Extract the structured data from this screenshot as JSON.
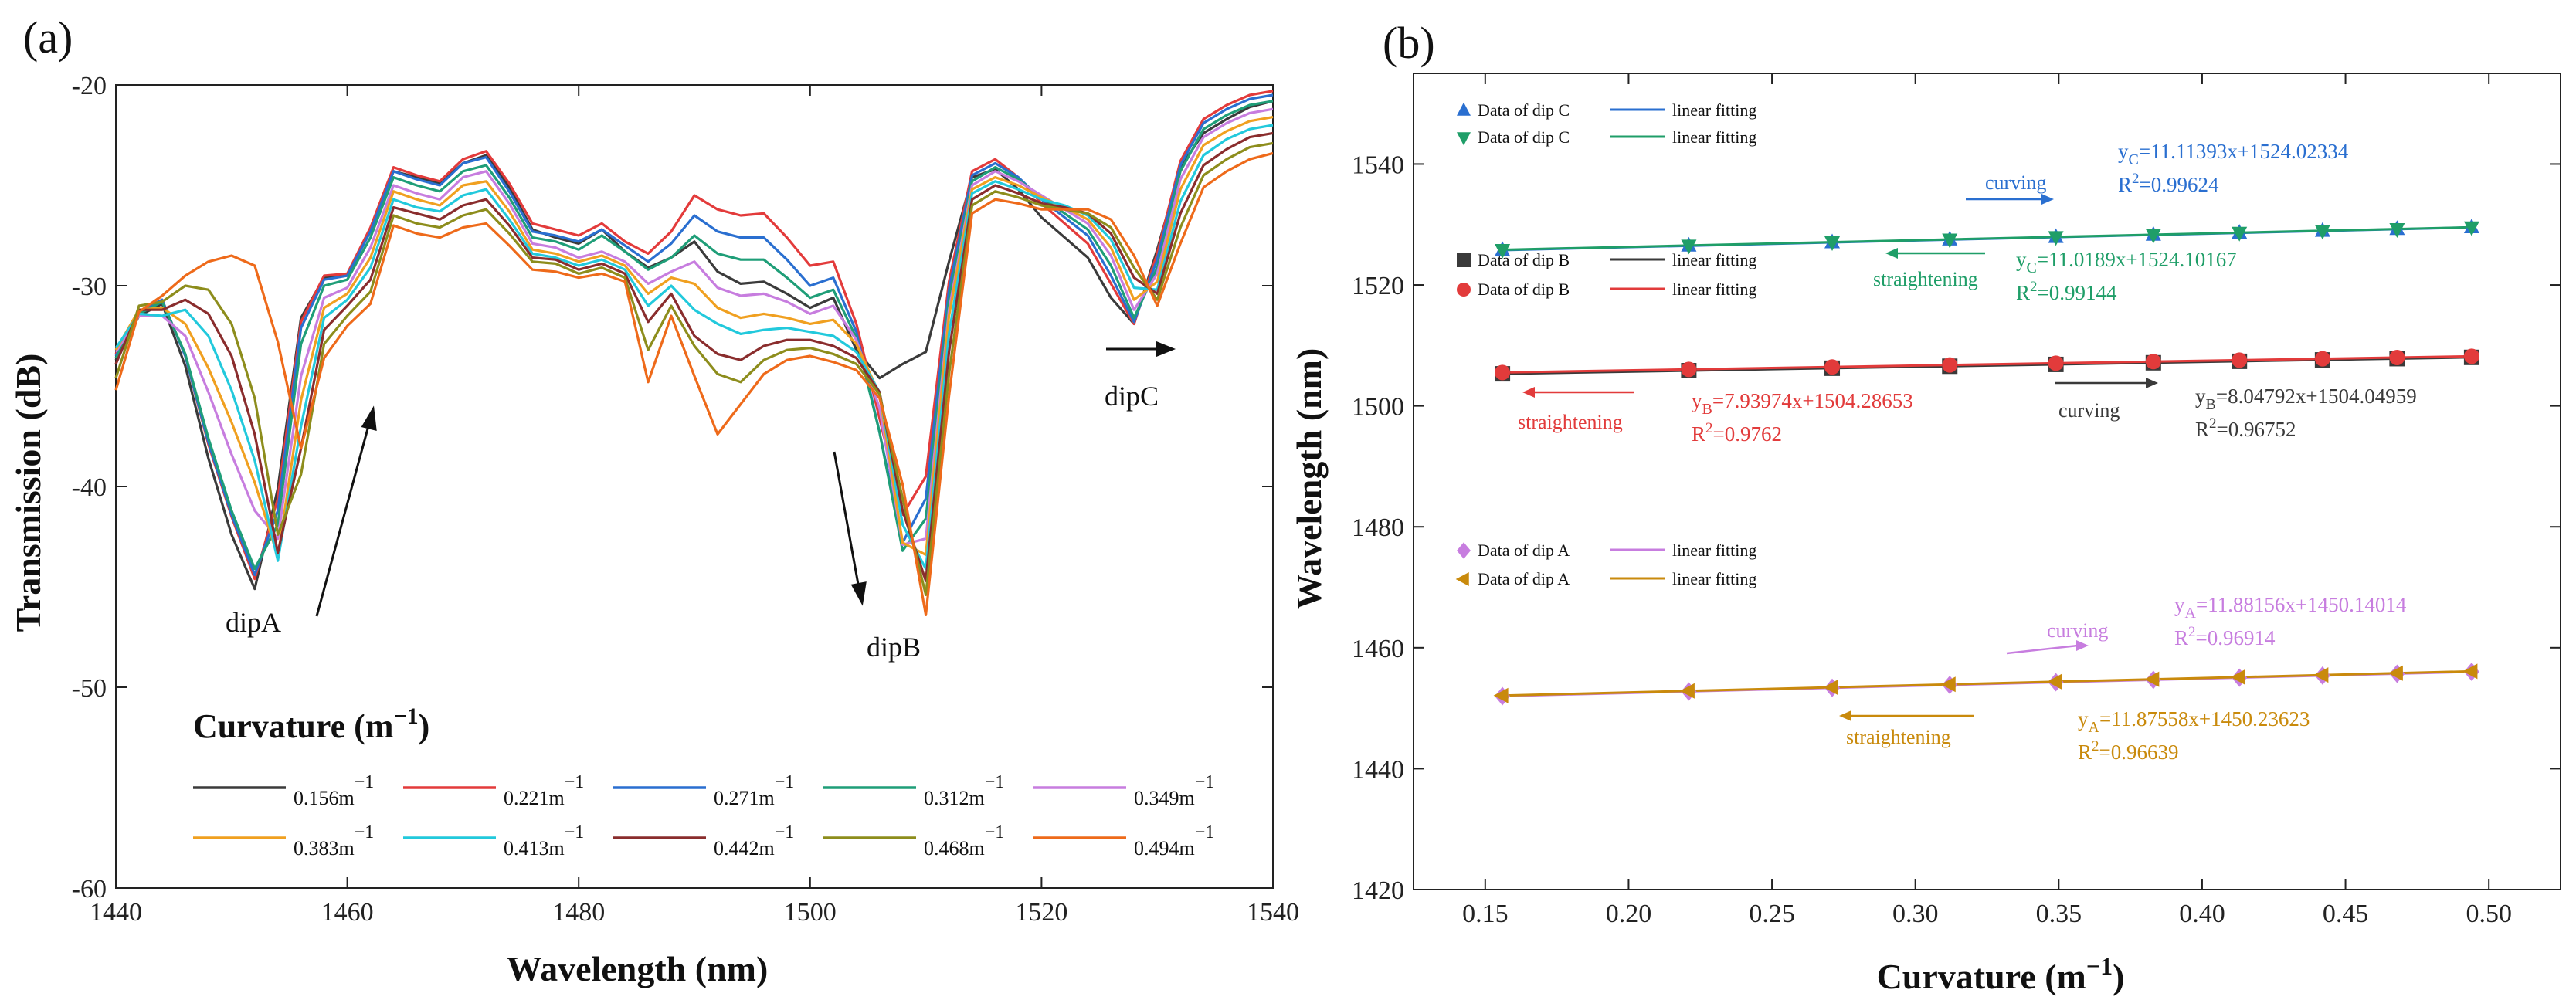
{
  "chart_data": [
    {
      "type": "line",
      "panel_label": "(a)",
      "xlabel": "Wavelength (nm)",
      "ylabel": "Transmission (dB)",
      "xlim": [
        1440,
        1540
      ],
      "ylim": [
        -60,
        -20
      ],
      "xticks": [
        1440,
        1460,
        1480,
        1500,
        1520,
        1540
      ],
      "yticks": [
        -20,
        -30,
        -40,
        -50,
        -60
      ],
      "legend_title": "Curvature (m",
      "legend_title_sup": "−1",
      "legend_title_end": ")",
      "annotations": [
        "dipA",
        "dipB",
        "dipC"
      ],
      "x": [
        1440,
        1442,
        1444,
        1446,
        1448,
        1450,
        1452,
        1454,
        1456,
        1458,
        1460,
        1462,
        1464,
        1466,
        1468,
        1470,
        1472,
        1474,
        1476,
        1478,
        1480,
        1482,
        1484,
        1486,
        1488,
        1490,
        1492,
        1494,
        1496,
        1498,
        1500,
        1502,
        1504,
        1506,
        1508,
        1510,
        1512,
        1514,
        1516,
        1518,
        1520,
        1522,
        1524,
        1526,
        1528,
        1530,
        1532,
        1534,
        1536,
        1538,
        1540
      ],
      "series": [
        {
          "name": "0.156m",
          "unit_sup": "−1",
          "color": "#3b3b3b",
          "values": [
            -33.7,
            -31.5,
            -30.9,
            -34,
            -38.6,
            -42.4,
            -45.1,
            -40.1,
            -31.6,
            -29.6,
            -29.5,
            -27.2,
            -24.3,
            -24.6,
            -24.9,
            -23.9,
            -23.5,
            -25.1,
            -27.2,
            -27.6,
            -27.9,
            -27.2,
            -28.3,
            -29.1,
            -28.6,
            -27.8,
            -29.3,
            -29.9,
            -29.8,
            -30.4,
            -31.1,
            -30.6,
            -33.2,
            -34.6,
            -33.9,
            -33.3,
            -28.8,
            -24.6,
            -24.2,
            -25.2,
            -26.6,
            -27.6,
            -28.6,
            -30.6,
            -31.9,
            -28.2,
            -24.1,
            -22.4,
            -21.7,
            -21.1,
            -20.8
          ]
        },
        {
          "name": "0.221m",
          "unit_sup": "−1",
          "color": "#e33b3b",
          "values": [
            -33.4,
            -31.3,
            -30.7,
            -33.5,
            -37.9,
            -41.5,
            -44.6,
            -40.6,
            -31.8,
            -29.5,
            -29.4,
            -27.1,
            -24.1,
            -24.5,
            -24.8,
            -23.7,
            -23.3,
            -24.9,
            -26.9,
            -27.2,
            -27.5,
            -26.9,
            -27.8,
            -28.4,
            -27.3,
            -25.5,
            -26.2,
            -26.5,
            -26.4,
            -27.6,
            -29,
            -28.8,
            -31.9,
            -36.6,
            -41.4,
            -39.5,
            -29.8,
            -24.3,
            -23.7,
            -24.6,
            -25.9,
            -26.9,
            -27.9,
            -29.9,
            -31.9,
            -28.4,
            -23.8,
            -21.7,
            -21,
            -20.5,
            -20.3
          ]
        },
        {
          "name": "0.271m",
          "unit_sup": "−1",
          "color": "#2a6fd0",
          "values": [
            -33.5,
            -31.3,
            -30.7,
            -33.5,
            -37.8,
            -41.4,
            -44.4,
            -41.2,
            -32.1,
            -29.7,
            -29.5,
            -27.3,
            -24.3,
            -24.7,
            -25,
            -23.9,
            -23.6,
            -25.3,
            -27.3,
            -27.5,
            -27.8,
            -27.2,
            -28,
            -28.8,
            -27.9,
            -26.5,
            -27.3,
            -27.6,
            -27.6,
            -28.7,
            -30,
            -29.6,
            -32.3,
            -37.3,
            -42.8,
            -40.6,
            -30.2,
            -24.5,
            -23.9,
            -24.6,
            -25.7,
            -26.6,
            -27.5,
            -29.5,
            -31.8,
            -28.7,
            -24,
            -21.9,
            -21.2,
            -20.7,
            -20.5
          ]
        },
        {
          "name": "0.312m",
          "unit_sup": "−1",
          "color": "#1f9e78",
          "values": [
            -33.6,
            -31.4,
            -30.8,
            -33.4,
            -37.6,
            -41.2,
            -44.1,
            -41.9,
            -32.9,
            -30,
            -29.7,
            -27.6,
            -24.6,
            -25,
            -25.3,
            -24.3,
            -24,
            -25.6,
            -27.6,
            -27.8,
            -28.2,
            -27.5,
            -28.3,
            -29.2,
            -28.6,
            -27.5,
            -28.4,
            -28.7,
            -28.7,
            -29.6,
            -30.6,
            -30.2,
            -32.6,
            -37.3,
            -43.2,
            -41.6,
            -30.7,
            -24.8,
            -24.1,
            -24.7,
            -25.6,
            -26.4,
            -27.2,
            -29,
            -31.6,
            -29.1,
            -24.3,
            -22.2,
            -21.5,
            -21,
            -20.8
          ]
        },
        {
          "name": "0.349m",
          "unit_sup": "−1",
          "color": "#c77ddf",
          "values": [
            -33.3,
            -31.5,
            -31.5,
            -32.5,
            -35.3,
            -38.4,
            -41.2,
            -42.6,
            -34.5,
            -30.6,
            -30.1,
            -28.1,
            -25,
            -25.4,
            -25.7,
            -24.6,
            -24.3,
            -25.9,
            -27.9,
            -28.1,
            -28.6,
            -28.3,
            -28.8,
            -29.9,
            -29.3,
            -28.8,
            -30.1,
            -30.5,
            -30.4,
            -30.8,
            -31.4,
            -31,
            -32.7,
            -36.1,
            -42.9,
            -42.6,
            -31.2,
            -25,
            -24.3,
            -24.8,
            -25.5,
            -26.2,
            -26.9,
            -28.5,
            -31.2,
            -29.4,
            -24.7,
            -22.6,
            -21.9,
            -21.4,
            -21.2
          ]
        },
        {
          "name": "0.383m",
          "unit_sup": "−1",
          "color": "#f0a020",
          "values": [
            -33.2,
            -31.2,
            -31.1,
            -31.9,
            -34.1,
            -36.8,
            -39.8,
            -43.5,
            -35.7,
            -31.1,
            -30.4,
            -28.6,
            -25.3,
            -25.7,
            -26,
            -25,
            -24.8,
            -26.3,
            -28.2,
            -28.4,
            -28.8,
            -28.5,
            -29,
            -30.4,
            -29.6,
            -29.9,
            -31.1,
            -31.6,
            -31.4,
            -31.6,
            -31.9,
            -31.7,
            -32.9,
            -35.4,
            -42.8,
            -43.4,
            -31.5,
            -25.2,
            -24.6,
            -25,
            -25.6,
            -26.1,
            -26.7,
            -28.1,
            -30.7,
            -29.8,
            -25.2,
            -23,
            -22.3,
            -21.8,
            -21.6
          ]
        },
        {
          "name": "0.413m",
          "unit_sup": "−1",
          "color": "#22c9dc",
          "values": [
            -33.1,
            -31.4,
            -31.5,
            -31.2,
            -32.5,
            -35.2,
            -38.7,
            -43.7,
            -37,
            -31.6,
            -30.7,
            -29.1,
            -25.7,
            -26.1,
            -26.3,
            -25.5,
            -25.2,
            -26.7,
            -28.4,
            -28.6,
            -29,
            -28.7,
            -29.2,
            -31,
            -30,
            -31.2,
            -31.9,
            -32.4,
            -32.2,
            -32.1,
            -32.3,
            -32.5,
            -33.3,
            -35.3,
            -41.9,
            -44.1,
            -32.4,
            -25.4,
            -24.8,
            -25.2,
            -25.7,
            -26,
            -26.5,
            -27.7,
            -30.1,
            -30.2,
            -25.8,
            -23.5,
            -22.7,
            -22.2,
            -22
          ]
        },
        {
          "name": "0.442m",
          "unit_sup": "−1",
          "color": "#8a2d2d",
          "values": [
            -33.9,
            -31.2,
            -31.2,
            -30.7,
            -31.4,
            -33.5,
            -37.4,
            -43.3,
            -38.1,
            -32.2,
            -31,
            -29.7,
            -26.1,
            -26.4,
            -26.7,
            -26,
            -25.7,
            -27,
            -28.6,
            -28.7,
            -29.2,
            -28.9,
            -29.4,
            -31.8,
            -30.4,
            -32.5,
            -33.4,
            -33.7,
            -33,
            -32.7,
            -32.7,
            -33,
            -33.6,
            -35.3,
            -41.2,
            -44.7,
            -33.3,
            -25.7,
            -25,
            -25.4,
            -25.9,
            -26.1,
            -26.4,
            -27.4,
            -29.6,
            -30.4,
            -26.4,
            -24,
            -23.2,
            -22.6,
            -22.4
          ]
        },
        {
          "name": "0.468m",
          "unit_sup": "−1",
          "color": "#8d8d1c",
          "values": [
            -34.6,
            -31,
            -30.8,
            -30,
            -30.2,
            -31.9,
            -35.6,
            -42.4,
            -39.4,
            -32.9,
            -31.5,
            -30.3,
            -26.5,
            -26.9,
            -27.1,
            -26.5,
            -26.2,
            -27.4,
            -28.8,
            -28.9,
            -29.4,
            -29.1,
            -29.6,
            -33.2,
            -31,
            -33,
            -34.4,
            -34.8,
            -33.7,
            -33.2,
            -33.1,
            -33.4,
            -33.9,
            -35.4,
            -40.6,
            -45.4,
            -34.4,
            -26,
            -25.3,
            -25.6,
            -26,
            -26.2,
            -26.4,
            -27.1,
            -29.1,
            -30.7,
            -27.1,
            -24.5,
            -23.7,
            -23.1,
            -22.9
          ]
        },
        {
          "name": "0.494m",
          "unit_sup": "−1",
          "color": "#ee6a1a",
          "values": [
            -35.2,
            -31.3,
            -30.5,
            -29.5,
            -28.8,
            -28.5,
            -29,
            -32.8,
            -38.1,
            -33.6,
            -32,
            -30.9,
            -27,
            -27.4,
            -27.6,
            -27.1,
            -26.9,
            -28,
            -29.2,
            -29.3,
            -29.6,
            -29.4,
            -29.8,
            -34.8,
            -31.5,
            -34.5,
            -37.4,
            -35.9,
            -34.4,
            -33.7,
            -33.5,
            -33.8,
            -34.2,
            -35.6,
            -39.9,
            -46.4,
            -35.5,
            -26.4,
            -25.7,
            -25.9,
            -26.2,
            -26.2,
            -26.2,
            -26.7,
            -28.5,
            -31,
            -27.9,
            -25.1,
            -24.3,
            -23.7,
            -23.4
          ]
        }
      ]
    },
    {
      "type": "scatter",
      "panel_label": "(b)",
      "xlabel": "Curvature (m",
      "xlabel_sup": "−1",
      "xlabel_end": ")",
      "ylabel": "Wavelength (nm)",
      "xlim": [
        0.125,
        0.525
      ],
      "ylim": [
        1420,
        1555
      ],
      "xticks": [
        "0.15",
        "0.20",
        "0.25",
        "0.30",
        "0.35",
        "0.40",
        "0.45",
        "0.50"
      ],
      "yticks": [
        1420,
        1440,
        1460,
        1480,
        1500,
        1520,
        1540
      ],
      "x": [
        0.156,
        0.221,
        0.271,
        0.312,
        0.349,
        0.383,
        0.413,
        0.442,
        0.468,
        0.494
      ],
      "series": [
        {
          "name": "Data of dip C",
          "fit_label": "linear fitting",
          "marker": "triangle-up",
          "color": "#2a6fd0",
          "slope": 11.11393,
          "intercept": 1524.02334,
          "equation": "y",
          "eq_sub": "C",
          "eq_rest": "=11.11393x+1524.02334",
          "r2_value": "=0.99624",
          "trend": "curving"
        },
        {
          "name": "Data of dip C",
          "fit_label": "linear fitting",
          "marker": "triangle-down",
          "color": "#1f9e68",
          "slope": 11.0189,
          "intercept": 1524.10167,
          "equation": "y",
          "eq_sub": "C",
          "eq_rest": "=11.0189x+1524.10167",
          "r2_value": "=0.99144",
          "trend": "straightening"
        },
        {
          "name": "Data of dip B",
          "fit_label": "linear fitting",
          "marker": "square",
          "color": "#3a3a3a",
          "slope": 8.04792,
          "intercept": 1504.04959,
          "equation": "y",
          "eq_sub": "B",
          "eq_rest": "=8.04792x+1504.04959",
          "r2_value": "=0.96752",
          "trend": "curving"
        },
        {
          "name": "Data of dip B",
          "fit_label": "linear fitting",
          "marker": "circle",
          "color": "#e23b3b",
          "slope": 7.93974,
          "intercept": 1504.28653,
          "equation": "y",
          "eq_sub": "B",
          "eq_rest": "=7.93974x+1504.28653",
          "r2_value": "=0.9762",
          "trend": "straightening"
        },
        {
          "name": "Data of  dip A",
          "fit_label": "linear fitting",
          "marker": "diamond",
          "color": "#c77ddf",
          "slope": 11.88156,
          "intercept": 1450.14014,
          "equation": "y",
          "eq_sub": "A",
          "eq_rest": "=11.88156x+1450.14014",
          "r2_value": "=0.96914",
          "trend": "curving"
        },
        {
          "name": "Data of  dip A",
          "fit_label": "linear fitting",
          "marker": "triangle-left",
          "color": "#c98a0c",
          "slope": 11.87558,
          "intercept": 1450.23623,
          "equation": "y",
          "eq_sub": "A",
          "eq_rest": "=11.87558x+1450.23623",
          "r2_value": "=0.96639",
          "trend": "straightening"
        }
      ],
      "r2_prefix": "R",
      "r2_sup": "2"
    }
  ]
}
